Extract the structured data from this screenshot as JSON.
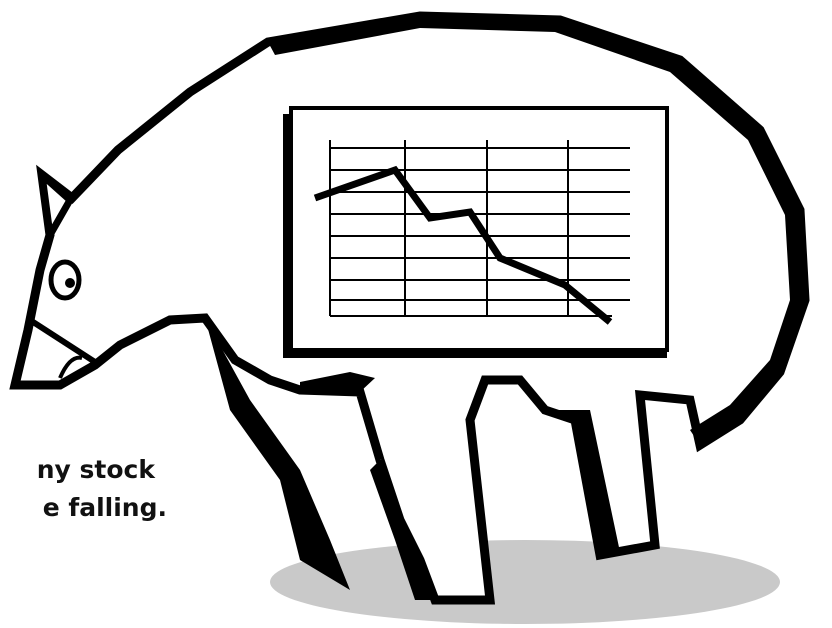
{
  "caption": {
    "lines": [
      "ny stock",
      "e falling."
    ]
  }
}
